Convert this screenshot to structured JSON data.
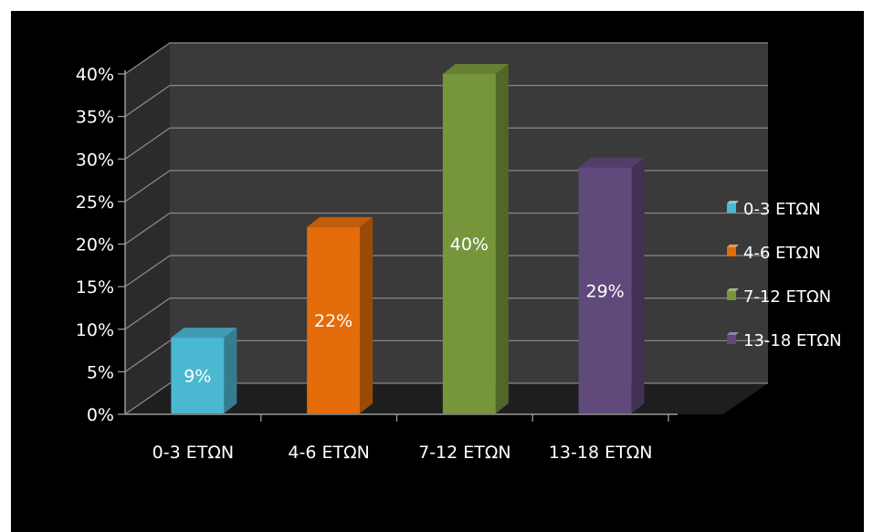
{
  "chart_data": {
    "type": "bar",
    "three_d": true,
    "categories": [
      "0-3 ΕΤΩΝ",
      "4-6 ΕΤΩΝ",
      "7-12 ΕΤΩΝ",
      "13-18 ΕΤΩΝ"
    ],
    "values": [
      9,
      22,
      40,
      29
    ],
    "data_labels": [
      "9%",
      "22%",
      "40%",
      "29%"
    ],
    "colors": [
      "#4bb8d2",
      "#e46c0a",
      "#77963c",
      "#604a7b"
    ],
    "y_ticks": [
      "0%",
      "5%",
      "10%",
      "15%",
      "20%",
      "25%",
      "30%",
      "35%",
      "40%"
    ],
    "ylim": [
      0,
      40
    ],
    "ystep": 5,
    "grid": true,
    "legend_position": "right",
    "legend": [
      "0-3 ΕΤΩΝ",
      "4-6 ΕΤΩΝ",
      "7-12 ΕΤΩΝ",
      "13-18 ΕΤΩΝ"
    ],
    "background": "#000000"
  }
}
